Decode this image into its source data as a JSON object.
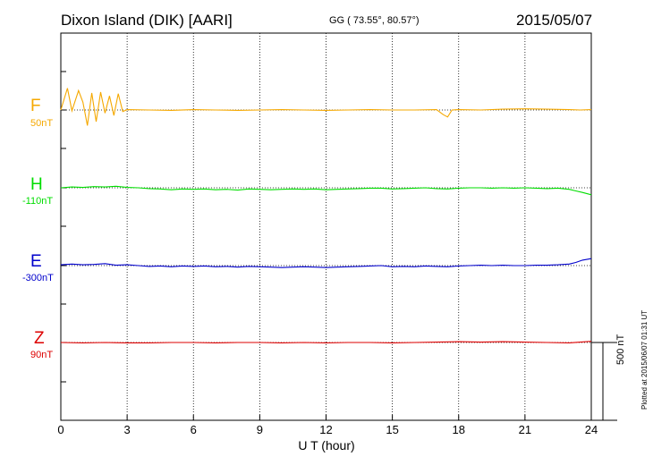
{
  "header": {
    "station": "Dixon Island (DIK)  [AARI]",
    "coords": "GG ( 73.55°,  80.57°)",
    "date": "2015/05/07"
  },
  "components": [
    {
      "name": "F",
      "base": "50nT",
      "color": "#f5a800"
    },
    {
      "name": "H",
      "base": "-110nT",
      "color": "#00dd00"
    },
    {
      "name": "E",
      "base": "-300nT",
      "color": "#0000cc"
    },
    {
      "name": "Z",
      "base": "90nT",
      "color": "#dd0000"
    }
  ],
  "scale_label": "500 nT",
  "plotted_note": "Plotted at 2015/06/07 01:31  UT",
  "chart_data": {
    "type": "line",
    "xlabel": "U T (hour)",
    "xlim": [
      0,
      24
    ],
    "x_ticks": [
      "0",
      "3",
      "6",
      "9",
      "12",
      "15",
      "18",
      "21",
      "24"
    ],
    "y_scale_nT": 500,
    "grid": "vertical dotted lines every 3 hours; dotted baseline per component",
    "series": [
      {
        "name": "F",
        "x": [
          0,
          0.3,
          0.5,
          0.8,
          1.0,
          1.2,
          1.4,
          1.6,
          1.8,
          2.0,
          2.2,
          2.4,
          2.6,
          2.8,
          3,
          4,
          5,
          6,
          7,
          8,
          9,
          10,
          11,
          12,
          13,
          14,
          15,
          16,
          17,
          17.3,
          17.5,
          17.7,
          18,
          19,
          20,
          21,
          22,
          23,
          23.5,
          24
        ],
        "values": [
          0,
          280,
          -10,
          250,
          100,
          -200,
          220,
          -150,
          230,
          -40,
          180,
          -70,
          210,
          -20,
          5,
          0,
          -5,
          5,
          0,
          -5,
          0,
          5,
          0,
          -5,
          0,
          5,
          0,
          0,
          5,
          -60,
          -90,
          0,
          5,
          0,
          10,
          15,
          10,
          5,
          0,
          5
        ]
      },
      {
        "name": "H",
        "x": [
          0,
          0.5,
          1,
          1.5,
          2,
          2.5,
          3,
          3.5,
          4,
          4.5,
          5,
          5.5,
          6,
          6.5,
          7,
          7.5,
          8,
          8.5,
          9,
          9.5,
          10,
          10.5,
          11,
          11.5,
          12,
          12.5,
          13,
          13.5,
          14,
          14.5,
          15,
          15.5,
          16,
          16.5,
          17,
          17.5,
          18,
          18.5,
          19,
          19.5,
          20,
          20.5,
          21,
          21.5,
          22,
          22.5,
          23,
          23.3,
          23.6,
          24
        ],
        "values": [
          0,
          10,
          5,
          15,
          10,
          20,
          5,
          0,
          -10,
          -15,
          -25,
          -15,
          -20,
          -15,
          -25,
          -20,
          -30,
          -15,
          -20,
          -25,
          -20,
          -15,
          -20,
          -15,
          -25,
          -20,
          -15,
          -10,
          -5,
          -5,
          -15,
          -10,
          -5,
          0,
          -10,
          -15,
          -5,
          0,
          0,
          -5,
          0,
          -5,
          0,
          -5,
          -10,
          -5,
          -20,
          -40,
          -60,
          -90
        ]
      },
      {
        "name": "E",
        "x": [
          0,
          0.5,
          1,
          1.5,
          2,
          2.5,
          3,
          3.5,
          4,
          4.5,
          5,
          5.5,
          6,
          6.5,
          7,
          7.5,
          8,
          8.5,
          9,
          9.5,
          10,
          10.5,
          11,
          11.5,
          12,
          12.5,
          13,
          13.5,
          14,
          14.5,
          15,
          15.5,
          16,
          16.5,
          17,
          17.5,
          18,
          18.5,
          19,
          19.5,
          20,
          20.5,
          21,
          21.5,
          22,
          22.5,
          23,
          23.3,
          23.6,
          24
        ],
        "values": [
          10,
          20,
          10,
          15,
          25,
          5,
          10,
          0,
          -10,
          -5,
          -15,
          -5,
          -10,
          -5,
          -15,
          -10,
          -20,
          -10,
          -15,
          -20,
          -25,
          -20,
          -15,
          -20,
          -25,
          -20,
          -15,
          -10,
          -5,
          0,
          -15,
          -10,
          -15,
          -5,
          -10,
          -15,
          -5,
          0,
          5,
          0,
          5,
          0,
          0,
          5,
          5,
          10,
          20,
          40,
          70,
          90
        ]
      },
      {
        "name": "Z",
        "x": [
          0,
          1,
          2,
          3,
          4,
          5,
          6,
          7,
          8,
          9,
          10,
          11,
          12,
          13,
          14,
          15,
          16,
          17,
          18,
          19,
          20,
          21,
          22,
          23,
          23.5,
          24
        ],
        "values": [
          0,
          -5,
          0,
          -5,
          -5,
          0,
          0,
          -5,
          0,
          0,
          -5,
          0,
          -5,
          0,
          0,
          -5,
          0,
          5,
          10,
          5,
          10,
          5,
          0,
          -5,
          5,
          15
        ]
      }
    ]
  }
}
